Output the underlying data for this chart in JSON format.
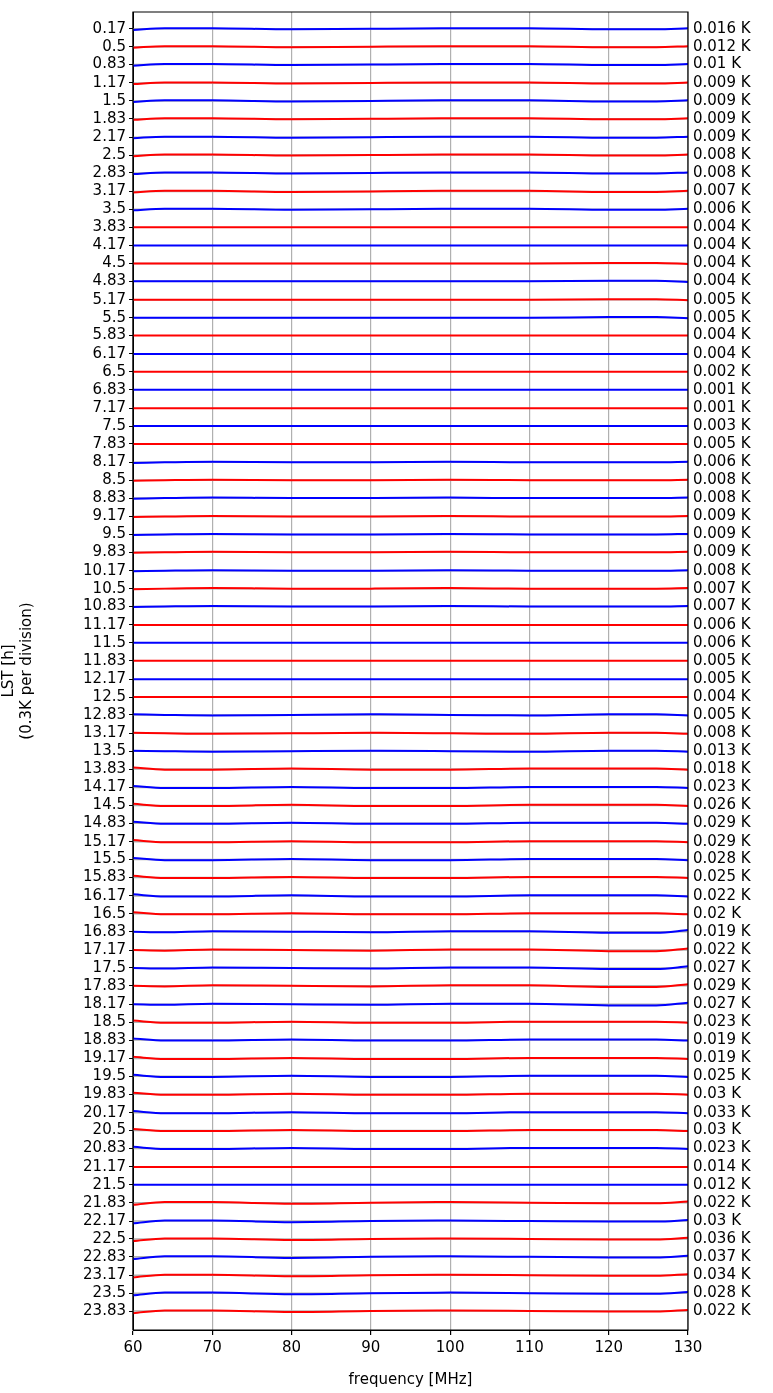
{
  "chart_data": {
    "type": "line",
    "xlabel": "frequency [MHz]",
    "ylabel": "LST [h]\n(0.3K per division)",
    "grid": "x",
    "xlim": [
      60,
      130
    ],
    "xticks": [
      60,
      70,
      80,
      90,
      100,
      110,
      120,
      130
    ],
    "ylim": [
      24.18,
      -0.14
    ],
    "yticks": [
      0.17,
      0.5,
      0.83,
      1.17,
      1.5,
      1.83,
      2.17,
      2.5,
      2.83,
      3.17,
      3.5,
      3.83,
      4.17,
      4.5,
      4.83,
      5.17,
      5.5,
      5.83,
      6.17,
      6.5,
      6.83,
      7.17,
      7.5,
      7.83,
      8.17,
      8.5,
      8.83,
      9.17,
      9.5,
      9.83,
      10.17,
      10.5,
      10.83,
      11.17,
      11.5,
      11.83,
      12.17,
      12.5,
      12.83,
      13.17,
      13.5,
      13.83,
      14.17,
      14.5,
      14.83,
      15.17,
      15.5,
      15.83,
      16.17,
      16.5,
      16.83,
      17.17,
      17.5,
      17.83,
      18.17,
      18.5,
      18.83,
      19.17,
      19.5,
      19.83,
      20.17,
      20.5,
      20.83,
      21.17,
      21.5,
      21.83,
      22.17,
      22.5,
      22.83,
      23.17,
      23.5,
      23.83
    ],
    "x": [
      60,
      64,
      70,
      80,
      90,
      100,
      110,
      120,
      126,
      130
    ],
    "annotations": [
      "0.016 K",
      "0.012 K",
      "0.01 K",
      "0.009 K",
      "0.009 K",
      "0.009 K",
      "0.009 K",
      "0.008 K",
      "0.008 K",
      "0.007 K",
      "0.006 K",
      "0.004 K",
      "0.004 K",
      "0.004 K",
      "0.004 K",
      "0.005 K",
      "0.005 K",
      "0.004 K",
      "0.004 K",
      "0.002 K",
      "0.001 K",
      "0.001 K",
      "0.003 K",
      "0.005 K",
      "0.006 K",
      "0.008 K",
      "0.008 K",
      "0.009 K",
      "0.009 K",
      "0.009 K",
      "0.008 K",
      "0.007 K",
      "0.007 K",
      "0.006 K",
      "0.006 K",
      "0.005 K",
      "0.005 K",
      "0.004 K",
      "0.005 K",
      "0.008 K",
      "0.013 K",
      "0.018 K",
      "0.023 K",
      "0.026 K",
      "0.029 K",
      "0.029 K",
      "0.028 K",
      "0.025 K",
      "0.022 K",
      "0.02 K",
      "0.019 K",
      "0.022 K",
      "0.027 K",
      "0.029 K",
      "0.027 K",
      "0.023 K",
      "0.019 K",
      "0.019 K",
      "0.025 K",
      "0.03 K",
      "0.033 K",
      "0.03 K",
      "0.023 K",
      "0.014 K",
      "0.012 K",
      "0.022 K",
      "0.03 K",
      "0.036 K",
      "0.037 K",
      "0.034 K",
      "0.028 K",
      "0.022 K"
    ],
    "ref_lines": [
      {
        "axis": "y",
        "value": 0.17,
        "color": "#b0b0b0"
      },
      {
        "axis": "y",
        "value": 0.5,
        "color": "#b0b0b0"
      },
      {
        "axis": "y",
        "value": 0.83,
        "color": "#b0b0b0"
      },
      {
        "axis": "y",
        "value": 1.17,
        "color": "#b0b0b0"
      },
      {
        "axis": "y",
        "value": 1.5,
        "color": "#b0b0b0"
      },
      {
        "axis": "y",
        "value": 1.83,
        "color": "#b0b0b0"
      },
      {
        "axis": "y",
        "value": 2.17,
        "color": "#b0b0b0"
      },
      {
        "axis": "y",
        "value": 2.5,
        "color": "#b0b0b0"
      },
      {
        "axis": "y",
        "value": 2.83,
        "color": "#b0b0b0"
      },
      {
        "axis": "y",
        "value": 3.17,
        "color": "#b0b0b0"
      },
      {
        "axis": "y",
        "value": 3.5,
        "color": "#b0b0b0"
      },
      {
        "axis": "y",
        "value": 4.5,
        "color": "#b0b0b0"
      },
      {
        "axis": "y",
        "value": 4.83,
        "color": "#b0b0b0"
      },
      {
        "axis": "y",
        "value": 5.17,
        "color": "#b0b0b0"
      },
      {
        "axis": "y",
        "value": 5.5,
        "color": "#b0b0b0"
      },
      {
        "axis": "y",
        "value": 8.17,
        "color": "#b0b0b0"
      },
      {
        "axis": "y",
        "value": 8.5,
        "color": "#b0b0b0"
      },
      {
        "axis": "y",
        "value": 8.83,
        "color": "#b0b0b0"
      },
      {
        "axis": "y",
        "value": 9.17,
        "color": "#b0b0b0"
      },
      {
        "axis": "y",
        "value": 9.5,
        "color": "#b0b0b0"
      },
      {
        "axis": "y",
        "value": 9.83,
        "color": "#b0b0b0"
      },
      {
        "axis": "y",
        "value": 10.17,
        "color": "#b0b0b0"
      },
      {
        "axis": "y",
        "value": 10.5,
        "color": "#b0b0b0"
      },
      {
        "axis": "y",
        "value": 10.83,
        "color": "#b0b0b0"
      },
      {
        "axis": "y",
        "value": 12.83,
        "color": "#b0b0b0"
      },
      {
        "axis": "y",
        "value": 13.17,
        "color": "#b0b0b0"
      },
      {
        "axis": "y",
        "value": 13.5,
        "color": "#b0b0b0"
      },
      {
        "axis": "y",
        "value": 13.83,
        "color": "#b0b0b0"
      },
      {
        "axis": "y",
        "value": 14.17,
        "color": "#b0b0b0"
      },
      {
        "axis": "y",
        "value": 14.5,
        "color": "#b0b0b0"
      },
      {
        "axis": "y",
        "value": 14.83,
        "color": "#b0b0b0"
      },
      {
        "axis": "y",
        "value": 15.17,
        "color": "#b0b0b0"
      },
      {
        "axis": "y",
        "value": 15.5,
        "color": "#b0b0b0"
      },
      {
        "axis": "y",
        "value": 15.83,
        "color": "#b0b0b0"
      },
      {
        "axis": "y",
        "value": 16.17,
        "color": "#b0b0b0"
      },
      {
        "axis": "y",
        "value": 16.5,
        "color": "#b0b0b0"
      },
      {
        "axis": "y",
        "value": 16.83,
        "color": "#b0b0b0"
      },
      {
        "axis": "y",
        "value": 17.17,
        "color": "#b0b0b0"
      },
      {
        "axis": "y",
        "value": 17.5,
        "color": "#b0b0b0"
      },
      {
        "axis": "y",
        "value": 17.83,
        "color": "#b0b0b0"
      },
      {
        "axis": "y",
        "value": 18.17,
        "color": "#b0b0b0"
      },
      {
        "axis": "y",
        "value": 18.5,
        "color": "#b0b0b0"
      },
      {
        "axis": "y",
        "value": 18.83,
        "color": "#b0b0b0"
      },
      {
        "axis": "y",
        "value": 19.17,
        "color": "#b0b0b0"
      },
      {
        "axis": "y",
        "value": 19.5,
        "color": "#b0b0b0"
      },
      {
        "axis": "y",
        "value": 19.83,
        "color": "#b0b0b0"
      },
      {
        "axis": "y",
        "value": 20.17,
        "color": "#b0b0b0"
      },
      {
        "axis": "y",
        "value": 20.5,
        "color": "#b0b0b0"
      },
      {
        "axis": "y",
        "value": 20.83,
        "color": "#b0b0b0"
      },
      {
        "axis": "y",
        "value": 21.83,
        "color": "#b0b0b0"
      },
      {
        "axis": "y",
        "value": 22.17,
        "color": "#b0b0b0"
      },
      {
        "axis": "y",
        "value": 22.5,
        "color": "#b0b0b0"
      },
      {
        "axis": "y",
        "value": 22.83,
        "color": "#b0b0b0"
      },
      {
        "axis": "y",
        "value": 23.17,
        "color": "#b0b0b0"
      },
      {
        "axis": "y",
        "value": 23.5,
        "color": "#b0b0b0"
      },
      {
        "axis": "y",
        "value": 23.83,
        "color": "#b0b0b0"
      }
    ],
    "series": [
      {
        "color": "#0000ff",
        "values": [
          0.19,
          0.16,
          0.16,
          0.18,
          0.17,
          0.16,
          0.16,
          0.18,
          0.18,
          0.16
        ]
      },
      {
        "color": "#ff0000",
        "values": [
          0.52,
          0.49,
          0.49,
          0.51,
          0.5,
          0.49,
          0.49,
          0.51,
          0.51,
          0.49
        ]
      },
      {
        "color": "#0000ff",
        "values": [
          0.85,
          0.82,
          0.82,
          0.84,
          0.83,
          0.82,
          0.82,
          0.84,
          0.84,
          0.82
        ]
      },
      {
        "color": "#ff0000",
        "values": [
          1.19,
          1.16,
          1.16,
          1.18,
          1.17,
          1.16,
          1.16,
          1.18,
          1.18,
          1.16
        ]
      },
      {
        "color": "#0000ff",
        "values": [
          1.52,
          1.49,
          1.49,
          1.51,
          1.5,
          1.49,
          1.49,
          1.51,
          1.51,
          1.49
        ]
      },
      {
        "color": "#ff0000",
        "values": [
          1.85,
          1.82,
          1.82,
          1.84,
          1.83,
          1.82,
          1.82,
          1.84,
          1.84,
          1.82
        ]
      },
      {
        "color": "#0000ff",
        "values": [
          2.19,
          2.16,
          2.16,
          2.18,
          2.17,
          2.16,
          2.16,
          2.18,
          2.18,
          2.16
        ]
      },
      {
        "color": "#ff0000",
        "values": [
          2.52,
          2.49,
          2.49,
          2.51,
          2.5,
          2.49,
          2.49,
          2.51,
          2.51,
          2.49
        ]
      },
      {
        "color": "#0000ff",
        "values": [
          2.85,
          2.82,
          2.82,
          2.84,
          2.83,
          2.82,
          2.82,
          2.84,
          2.84,
          2.82
        ]
      },
      {
        "color": "#ff0000",
        "values": [
          3.19,
          3.16,
          3.16,
          3.18,
          3.17,
          3.16,
          3.16,
          3.18,
          3.18,
          3.16
        ]
      },
      {
        "color": "#0000ff",
        "values": [
          3.52,
          3.49,
          3.49,
          3.51,
          3.5,
          3.49,
          3.49,
          3.51,
          3.51,
          3.49
        ]
      },
      {
        "color": "#ff0000",
        "values": [
          3.83,
          3.83,
          3.83,
          3.83,
          3.83,
          3.83,
          3.83,
          3.83,
          3.83,
          3.83
        ]
      },
      {
        "color": "#0000ff",
        "values": [
          4.17,
          4.17,
          4.17,
          4.17,
          4.17,
          4.17,
          4.17,
          4.17,
          4.17,
          4.17
        ]
      },
      {
        "color": "#ff0000",
        "values": [
          4.5,
          4.5,
          4.5,
          4.5,
          4.5,
          4.5,
          4.5,
          4.49,
          4.49,
          4.51
        ]
      },
      {
        "color": "#0000ff",
        "values": [
          4.83,
          4.83,
          4.83,
          4.83,
          4.83,
          4.83,
          4.83,
          4.82,
          4.82,
          4.84
        ]
      },
      {
        "color": "#ff0000",
        "values": [
          5.17,
          5.17,
          5.17,
          5.17,
          5.17,
          5.17,
          5.17,
          5.16,
          5.16,
          5.18
        ]
      },
      {
        "color": "#0000ff",
        "values": [
          5.5,
          5.5,
          5.5,
          5.5,
          5.5,
          5.5,
          5.5,
          5.49,
          5.49,
          5.51
        ]
      },
      {
        "color": "#ff0000",
        "values": [
          5.83,
          5.83,
          5.83,
          5.83,
          5.83,
          5.83,
          5.83,
          5.83,
          5.83,
          5.83
        ]
      },
      {
        "color": "#0000ff",
        "values": [
          6.17,
          6.17,
          6.17,
          6.17,
          6.17,
          6.17,
          6.17,
          6.17,
          6.17,
          6.17
        ]
      },
      {
        "color": "#ff0000",
        "values": [
          6.5,
          6.5,
          6.5,
          6.5,
          6.5,
          6.5,
          6.5,
          6.5,
          6.5,
          6.5
        ]
      },
      {
        "color": "#0000ff",
        "values": [
          6.83,
          6.83,
          6.83,
          6.83,
          6.83,
          6.83,
          6.83,
          6.83,
          6.83,
          6.83
        ]
      },
      {
        "color": "#ff0000",
        "values": [
          7.17,
          7.17,
          7.17,
          7.17,
          7.17,
          7.17,
          7.17,
          7.17,
          7.17,
          7.17
        ]
      },
      {
        "color": "#0000ff",
        "values": [
          7.5,
          7.5,
          7.5,
          7.5,
          7.5,
          7.5,
          7.5,
          7.5,
          7.5,
          7.5
        ]
      },
      {
        "color": "#ff0000",
        "values": [
          7.83,
          7.83,
          7.83,
          7.83,
          7.83,
          7.83,
          7.83,
          7.83,
          7.83,
          7.83
        ]
      },
      {
        "color": "#0000ff",
        "values": [
          8.18,
          8.17,
          8.16,
          8.17,
          8.17,
          8.16,
          8.17,
          8.17,
          8.17,
          8.16
        ]
      },
      {
        "color": "#ff0000",
        "values": [
          8.51,
          8.5,
          8.49,
          8.5,
          8.5,
          8.49,
          8.5,
          8.5,
          8.5,
          8.49
        ]
      },
      {
        "color": "#0000ff",
        "values": [
          8.84,
          8.83,
          8.82,
          8.83,
          8.83,
          8.82,
          8.83,
          8.83,
          8.83,
          8.82
        ]
      },
      {
        "color": "#ff0000",
        "values": [
          9.18,
          9.17,
          9.16,
          9.17,
          9.17,
          9.16,
          9.17,
          9.17,
          9.17,
          9.16
        ]
      },
      {
        "color": "#0000ff",
        "values": [
          9.51,
          9.5,
          9.49,
          9.5,
          9.5,
          9.49,
          9.5,
          9.5,
          9.5,
          9.49
        ]
      },
      {
        "color": "#ff0000",
        "values": [
          9.84,
          9.83,
          9.82,
          9.83,
          9.83,
          9.82,
          9.83,
          9.83,
          9.83,
          9.82
        ]
      },
      {
        "color": "#0000ff",
        "values": [
          10.18,
          10.17,
          10.16,
          10.17,
          10.17,
          10.16,
          10.17,
          10.17,
          10.17,
          10.16
        ]
      },
      {
        "color": "#ff0000",
        "values": [
          10.51,
          10.5,
          10.49,
          10.5,
          10.5,
          10.49,
          10.5,
          10.5,
          10.5,
          10.49
        ]
      },
      {
        "color": "#0000ff",
        "values": [
          10.84,
          10.83,
          10.82,
          10.83,
          10.83,
          10.82,
          10.83,
          10.83,
          10.83,
          10.82
        ]
      },
      {
        "color": "#ff0000",
        "values": [
          11.17,
          11.17,
          11.17,
          11.17,
          11.17,
          11.17,
          11.17,
          11.17,
          11.17,
          11.17
        ]
      },
      {
        "color": "#0000ff",
        "values": [
          11.5,
          11.5,
          11.5,
          11.5,
          11.5,
          11.5,
          11.5,
          11.5,
          11.5,
          11.5
        ]
      },
      {
        "color": "#ff0000",
        "values": [
          11.83,
          11.83,
          11.83,
          11.83,
          11.83,
          11.83,
          11.83,
          11.83,
          11.83,
          11.83
        ]
      },
      {
        "color": "#0000ff",
        "values": [
          12.17,
          12.17,
          12.17,
          12.17,
          12.17,
          12.17,
          12.17,
          12.17,
          12.17,
          12.17
        ]
      },
      {
        "color": "#ff0000",
        "values": [
          12.5,
          12.5,
          12.5,
          12.5,
          12.5,
          12.5,
          12.5,
          12.5,
          12.5,
          12.5
        ]
      },
      {
        "color": "#0000ff",
        "values": [
          12.82,
          12.83,
          12.84,
          12.83,
          12.82,
          12.83,
          12.84,
          12.82,
          12.82,
          12.84
        ]
      },
      {
        "color": "#ff0000",
        "values": [
          13.16,
          13.17,
          13.18,
          13.17,
          13.16,
          13.17,
          13.18,
          13.16,
          13.16,
          13.18
        ]
      },
      {
        "color": "#0000ff",
        "values": [
          13.49,
          13.5,
          13.51,
          13.5,
          13.49,
          13.5,
          13.51,
          13.49,
          13.49,
          13.51
        ]
      },
      {
        "color": "#ff0000",
        "values": [
          13.8,
          13.84,
          13.84,
          13.82,
          13.84,
          13.84,
          13.82,
          13.82,
          13.82,
          13.84
        ]
      },
      {
        "color": "#0000ff",
        "values": [
          14.14,
          14.18,
          14.18,
          14.16,
          14.18,
          14.18,
          14.16,
          14.16,
          14.16,
          14.18
        ]
      },
      {
        "color": "#ff0000",
        "values": [
          14.47,
          14.51,
          14.51,
          14.49,
          14.51,
          14.51,
          14.49,
          14.49,
          14.49,
          14.51
        ]
      },
      {
        "color": "#0000ff",
        "values": [
          14.8,
          14.84,
          14.84,
          14.82,
          14.84,
          14.84,
          14.82,
          14.82,
          14.82,
          14.84
        ]
      },
      {
        "color": "#ff0000",
        "values": [
          15.14,
          15.18,
          15.18,
          15.16,
          15.18,
          15.18,
          15.16,
          15.16,
          15.16,
          15.18
        ]
      },
      {
        "color": "#0000ff",
        "values": [
          15.47,
          15.51,
          15.51,
          15.49,
          15.51,
          15.51,
          15.49,
          15.49,
          15.49,
          15.51
        ]
      },
      {
        "color": "#ff0000",
        "values": [
          15.8,
          15.84,
          15.84,
          15.82,
          15.84,
          15.84,
          15.82,
          15.82,
          15.82,
          15.84
        ]
      },
      {
        "color": "#0000ff",
        "values": [
          16.14,
          16.18,
          16.18,
          16.16,
          16.18,
          16.18,
          16.16,
          16.16,
          16.16,
          16.18
        ]
      },
      {
        "color": "#ff0000",
        "values": [
          16.47,
          16.51,
          16.51,
          16.49,
          16.51,
          16.51,
          16.49,
          16.49,
          16.49,
          16.51
        ]
      },
      {
        "color": "#0000ff",
        "values": [
          16.83,
          16.84,
          16.82,
          16.83,
          16.84,
          16.82,
          16.82,
          16.85,
          16.85,
          16.8
        ]
      },
      {
        "color": "#ff0000",
        "values": [
          17.17,
          17.18,
          17.16,
          17.17,
          17.18,
          17.16,
          17.16,
          17.19,
          17.19,
          17.14
        ]
      },
      {
        "color": "#0000ff",
        "values": [
          17.5,
          17.51,
          17.49,
          17.5,
          17.51,
          17.49,
          17.49,
          17.52,
          17.52,
          17.47
        ]
      },
      {
        "color": "#ff0000",
        "values": [
          17.83,
          17.84,
          17.82,
          17.83,
          17.84,
          17.82,
          17.82,
          17.85,
          17.85,
          17.8
        ]
      },
      {
        "color": "#0000ff",
        "values": [
          18.17,
          18.18,
          18.16,
          18.17,
          18.18,
          18.16,
          18.16,
          18.19,
          18.19,
          18.14
        ]
      },
      {
        "color": "#ff0000",
        "values": [
          18.47,
          18.51,
          18.51,
          18.49,
          18.51,
          18.51,
          18.49,
          18.49,
          18.49,
          18.51
        ]
      },
      {
        "color": "#0000ff",
        "values": [
          18.8,
          18.84,
          18.84,
          18.82,
          18.84,
          18.84,
          18.82,
          18.82,
          18.82,
          18.84
        ]
      },
      {
        "color": "#ff0000",
        "values": [
          19.14,
          19.18,
          19.18,
          19.16,
          19.18,
          19.18,
          19.16,
          19.16,
          19.16,
          19.18
        ]
      },
      {
        "color": "#0000ff",
        "values": [
          19.47,
          19.51,
          19.51,
          19.49,
          19.51,
          19.51,
          19.49,
          19.49,
          19.49,
          19.51
        ]
      },
      {
        "color": "#ff0000",
        "values": [
          19.8,
          19.84,
          19.84,
          19.82,
          19.84,
          19.84,
          19.82,
          19.82,
          19.82,
          19.84
        ]
      },
      {
        "color": "#0000ff",
        "values": [
          20.14,
          20.18,
          20.18,
          20.16,
          20.18,
          20.18,
          20.16,
          20.16,
          20.16,
          20.18
        ]
      },
      {
        "color": "#ff0000",
        "values": [
          20.47,
          20.51,
          20.51,
          20.49,
          20.51,
          20.51,
          20.49,
          20.49,
          20.49,
          20.51
        ]
      },
      {
        "color": "#0000ff",
        "values": [
          20.8,
          20.84,
          20.84,
          20.82,
          20.84,
          20.84,
          20.82,
          20.82,
          20.82,
          20.84
        ]
      },
      {
        "color": "#ff0000",
        "values": [
          21.17,
          21.17,
          21.17,
          21.17,
          21.17,
          21.17,
          21.17,
          21.17,
          21.17,
          21.17
        ]
      },
      {
        "color": "#0000ff",
        "values": [
          21.5,
          21.5,
          21.5,
          21.5,
          21.5,
          21.5,
          21.5,
          21.5,
          21.5,
          21.5
        ]
      },
      {
        "color": "#ff0000",
        "values": [
          21.87,
          21.82,
          21.82,
          21.85,
          21.83,
          21.82,
          21.83,
          21.84,
          21.84,
          21.81
        ]
      },
      {
        "color": "#0000ff",
        "values": [
          22.21,
          22.16,
          22.16,
          22.19,
          22.17,
          22.16,
          22.17,
          22.18,
          22.18,
          22.15
        ]
      },
      {
        "color": "#ff0000",
        "values": [
          22.54,
          22.49,
          22.49,
          22.52,
          22.5,
          22.49,
          22.5,
          22.51,
          22.51,
          22.48
        ]
      },
      {
        "color": "#0000ff",
        "values": [
          22.87,
          22.82,
          22.82,
          22.85,
          22.83,
          22.82,
          22.83,
          22.84,
          22.84,
          22.81
        ]
      },
      {
        "color": "#ff0000",
        "values": [
          23.21,
          23.16,
          23.16,
          23.19,
          23.17,
          23.16,
          23.17,
          23.18,
          23.18,
          23.15
        ]
      },
      {
        "color": "#0000ff",
        "values": [
          23.54,
          23.49,
          23.49,
          23.52,
          23.5,
          23.49,
          23.5,
          23.51,
          23.51,
          23.48
        ]
      },
      {
        "color": "#ff0000",
        "values": [
          23.87,
          23.82,
          23.82,
          23.85,
          23.83,
          23.82,
          23.83,
          23.84,
          23.84,
          23.81
        ]
      }
    ]
  }
}
